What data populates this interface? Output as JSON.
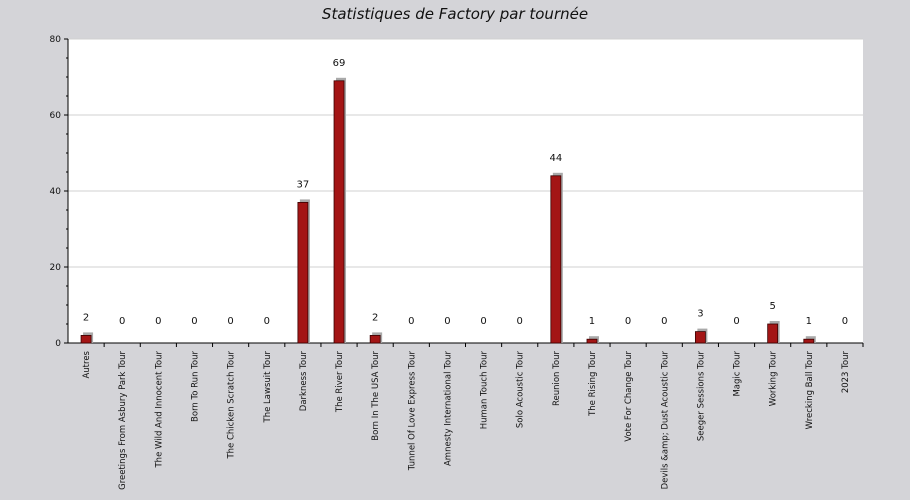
{
  "chart_data": {
    "type": "bar",
    "title": "Statistiques de Factory par tournée",
    "xlabel": "",
    "ylabel": "",
    "ylim": [
      0,
      80
    ],
    "yticks": [
      0,
      20,
      40,
      60,
      80
    ],
    "grid": true,
    "bar_color": "#a31515",
    "shadow_color": "#a9a9a9",
    "categories": [
      "Autres",
      "Greetings From Asbury Park Tour",
      "The Wild And Innocent Tour",
      "Born To Run Tour",
      "The Chicken Scratch Tour",
      "The Lawsuit Tour",
      "Darkness Tour",
      "The River Tour",
      "Born In The USA Tour",
      "Tunnel Of Love Express Tour",
      "Amnesty International Tour",
      "Human Touch Tour",
      "Solo Acoustic Tour",
      "Reunion Tour",
      "The Rising Tour",
      "Vote For Change Tour",
      "Devils &amp; Dust Acoustic Tour",
      "Seeger Sessions Tour",
      "Magic Tour",
      "Working Tour",
      "Wrecking Ball Tour",
      "2023 Tour"
    ],
    "values": [
      2,
      0,
      0,
      0,
      0,
      0,
      37,
      69,
      2,
      0,
      0,
      0,
      0,
      44,
      1,
      0,
      0,
      3,
      0,
      5,
      1,
      0
    ]
  }
}
